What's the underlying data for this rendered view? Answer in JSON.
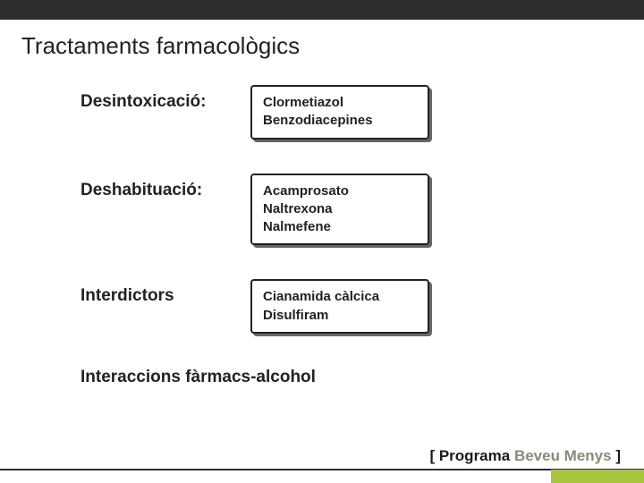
{
  "title": "Tractaments farmacològics",
  "rows": [
    {
      "label": "Desintoxicació:",
      "items": [
        "Clormetiazol",
        "Benzodiacepines"
      ]
    },
    {
      "label": "Deshabituació:",
      "items": [
        "Acamprosato",
        "Naltrexona",
        "Nalmefene"
      ]
    },
    {
      "label": "Interdictors",
      "items": [
        "Cianamida càlcica",
        "Disulfiram"
      ]
    }
  ],
  "footer": "Interaccions fàrmacs-alcohol",
  "program": {
    "bracket_open": "[ ",
    "p1": "Programa ",
    "p2": "Beveu Menys",
    "bracket_close": " ]"
  },
  "colors": {
    "topbar": "#2e2e2e",
    "accent_green": "#a8c43f",
    "text": "#222222",
    "program_muted": "#8a8978"
  }
}
